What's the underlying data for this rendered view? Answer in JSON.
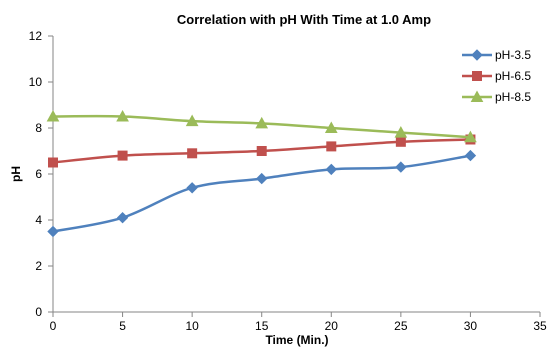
{
  "chart_data": {
    "type": "line",
    "title": "Correlation  with pH With Time at 1.0 Amp",
    "xlabel": "Time (Min.)",
    "ylabel": "pH",
    "xlim": [
      0,
      35
    ],
    "ylim": [
      0,
      12
    ],
    "x_ticks": [
      0,
      5,
      10,
      15,
      20,
      25,
      30,
      35
    ],
    "y_ticks": [
      0,
      2,
      4,
      6,
      8,
      10,
      12
    ],
    "x": [
      0,
      5,
      10,
      15,
      20,
      25,
      30
    ],
    "grid": false,
    "legend_position": "top-right",
    "series": [
      {
        "name": "pH-3.5",
        "values": [
          3.5,
          4.1,
          5.4,
          5.8,
          6.2,
          6.3,
          6.8
        ],
        "color": "#4F81BD",
        "marker": "diamond"
      },
      {
        "name": "pH-6.5",
        "values": [
          6.5,
          6.8,
          6.9,
          7.0,
          7.2,
          7.4,
          7.5
        ],
        "color": "#C0504D",
        "marker": "square"
      },
      {
        "name": "pH-8.5",
        "values": [
          8.5,
          8.5,
          8.3,
          8.2,
          8.0,
          7.8,
          7.6
        ],
        "color": "#9BBB59",
        "marker": "triangle"
      }
    ]
  }
}
